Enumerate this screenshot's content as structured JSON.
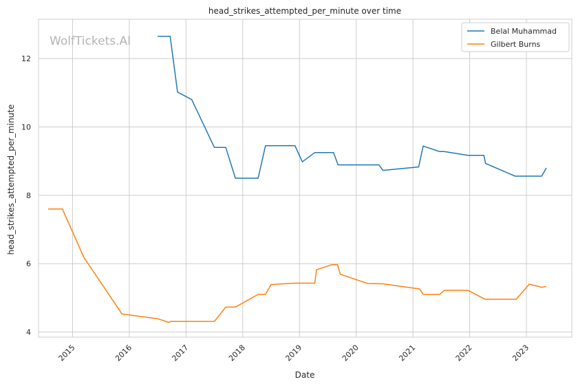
{
  "chart_data": {
    "type": "line",
    "title": "head_strikes_attempted_per_minute over time",
    "xlabel": "Date",
    "ylabel": "head_strikes_attempted_per_minute",
    "watermark": "WolfTickets.AI",
    "xlim": [
      2014.4,
      2023.8
    ],
    "ylim": [
      3.85,
      13.15
    ],
    "x_ticks": [
      2015,
      2016,
      2017,
      2018,
      2019,
      2020,
      2021,
      2022,
      2023
    ],
    "x_tick_labels": [
      "2015",
      "2016",
      "2017",
      "2018",
      "2019",
      "2020",
      "2021",
      "2022",
      "2023"
    ],
    "y_ticks": [
      4,
      6,
      8,
      10,
      12
    ],
    "y_tick_labels": [
      "4",
      "6",
      "8",
      "10",
      "12"
    ],
    "grid": true,
    "legend_position": "top-right",
    "series": [
      {
        "name": "Belal Muhammad",
        "color": "#1f77b4",
        "points": [
          [
            2016.5,
            12.65
          ],
          [
            2016.72,
            12.65
          ],
          [
            2016.85,
            11.02
          ],
          [
            2017.1,
            10.8
          ],
          [
            2017.5,
            9.4
          ],
          [
            2017.7,
            9.4
          ],
          [
            2017.87,
            8.5
          ],
          [
            2018.27,
            8.5
          ],
          [
            2018.4,
            9.45
          ],
          [
            2018.92,
            9.45
          ],
          [
            2019.05,
            8.98
          ],
          [
            2019.27,
            9.25
          ],
          [
            2019.6,
            9.25
          ],
          [
            2019.68,
            8.89
          ],
          [
            2020.4,
            8.89
          ],
          [
            2020.47,
            8.73
          ],
          [
            2021.1,
            8.83
          ],
          [
            2021.18,
            9.44
          ],
          [
            2021.47,
            9.28
          ],
          [
            2021.55,
            9.28
          ],
          [
            2021.97,
            9.17
          ],
          [
            2022.25,
            9.17
          ],
          [
            2022.28,
            8.93
          ],
          [
            2022.8,
            8.56
          ],
          [
            2023.27,
            8.56
          ],
          [
            2023.35,
            8.8
          ]
        ]
      },
      {
        "name": "Gilbert Burns",
        "color": "#ff7f0e",
        "points": [
          [
            2014.57,
            7.6
          ],
          [
            2014.82,
            7.6
          ],
          [
            2015.2,
            6.18
          ],
          [
            2015.87,
            4.53
          ],
          [
            2016.5,
            4.39
          ],
          [
            2016.7,
            4.28
          ],
          [
            2016.73,
            4.31
          ],
          [
            2017.5,
            4.31
          ],
          [
            2017.7,
            4.73
          ],
          [
            2017.87,
            4.73
          ],
          [
            2018.27,
            5.1
          ],
          [
            2018.4,
            5.1
          ],
          [
            2018.5,
            5.39
          ],
          [
            2018.92,
            5.43
          ],
          [
            2019.27,
            5.43
          ],
          [
            2019.3,
            5.82
          ],
          [
            2019.57,
            5.97
          ],
          [
            2019.67,
            5.97
          ],
          [
            2019.72,
            5.69
          ],
          [
            2020.2,
            5.42
          ],
          [
            2020.47,
            5.41
          ],
          [
            2021.12,
            5.26
          ],
          [
            2021.18,
            5.1
          ],
          [
            2021.47,
            5.1
          ],
          [
            2021.55,
            5.22
          ],
          [
            2021.97,
            5.22
          ],
          [
            2022.27,
            4.96
          ],
          [
            2022.82,
            4.96
          ],
          [
            2023.05,
            5.4
          ],
          [
            2023.27,
            5.31
          ],
          [
            2023.35,
            5.33
          ]
        ]
      }
    ]
  }
}
